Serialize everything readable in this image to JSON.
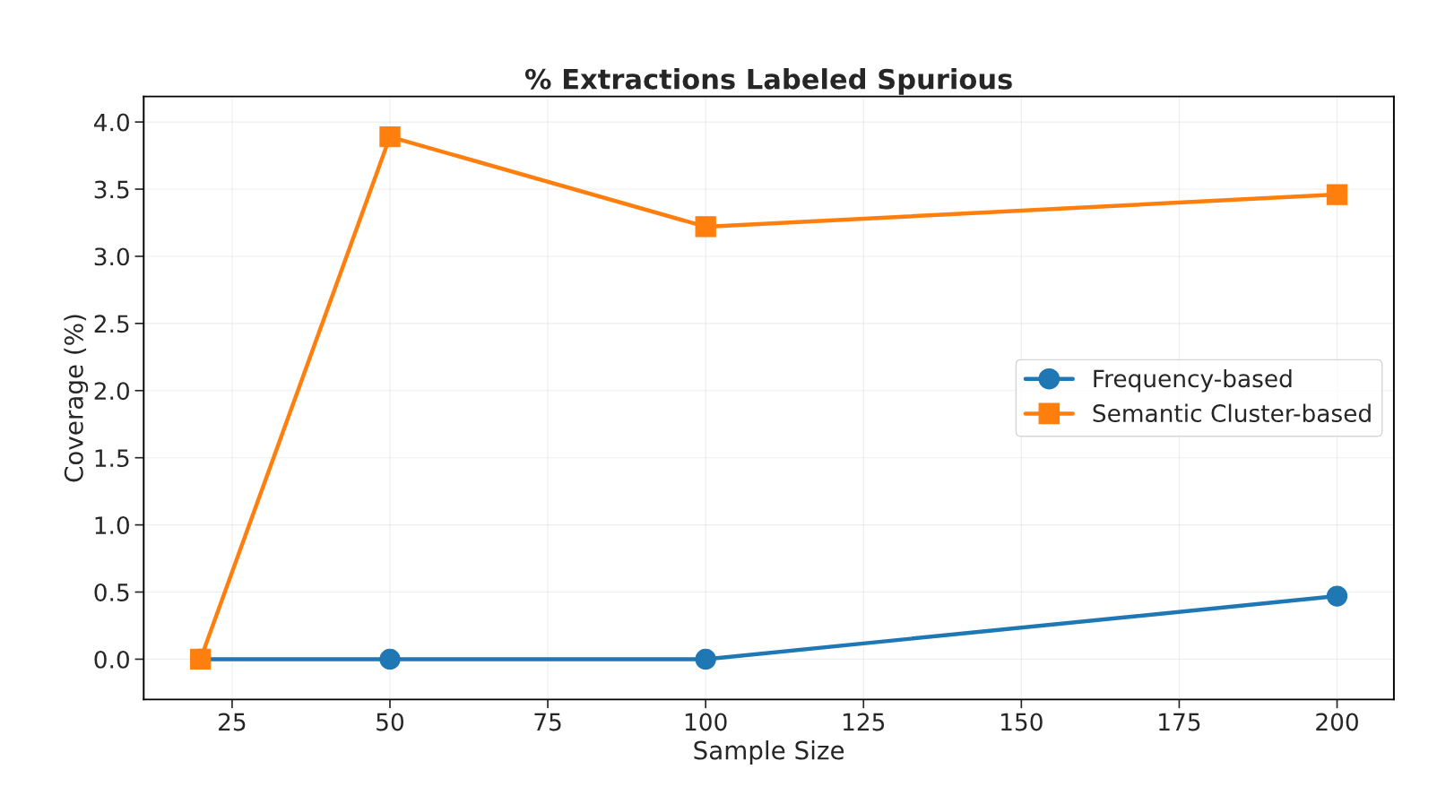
{
  "chart_data": {
    "type": "line",
    "title": "% Extractions Labeled Spurious",
    "xlabel": "Sample Size",
    "ylabel": "Coverage (%)",
    "x": [
      20,
      50,
      100,
      200
    ],
    "series": [
      {
        "name": "Frequency-based",
        "color": "#1f77b4",
        "marker": "circle",
        "values": [
          0,
          0,
          0,
          0.47
        ]
      },
      {
        "name": "Semantic Cluster-based",
        "color": "#ff7f0e",
        "marker": "square",
        "values": [
          0,
          3.89,
          3.22,
          3.46
        ]
      }
    ],
    "xlim": [
      11,
      209
    ],
    "xticks": [
      25,
      50,
      75,
      100,
      125,
      150,
      175,
      200
    ],
    "ylim": [
      -0.3,
      4.19
    ],
    "yticks": [
      {
        "value": 0,
        "label": "0.0"
      },
      {
        "value": 0.5,
        "label": "0.5"
      },
      {
        "value": 1,
        "label": "1.0"
      },
      {
        "value": 1.5,
        "label": "1.5"
      },
      {
        "value": 2,
        "label": "2.0"
      },
      {
        "value": 2.5,
        "label": "2.5"
      },
      {
        "value": 3,
        "label": "3.0"
      },
      {
        "value": 3.5,
        "label": "3.5"
      },
      {
        "value": 4,
        "label": "4.0"
      }
    ],
    "grid": true,
    "legend": "center right",
    "line_style": "solid"
  }
}
